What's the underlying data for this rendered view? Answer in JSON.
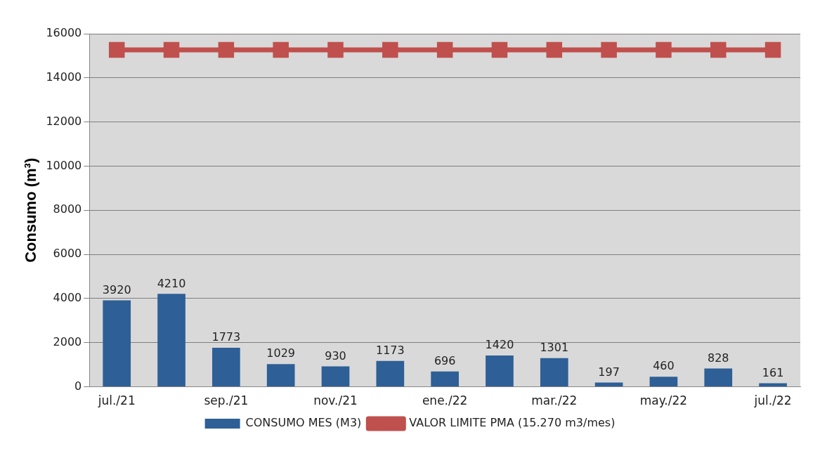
{
  "chart_data": {
    "type": "bar",
    "ylabel": "Consumo (m³)",
    "categories": [
      "jul./21",
      null,
      "sep./21",
      null,
      "nov./21",
      null,
      "ene./22",
      null,
      "mar./22",
      null,
      "may./22",
      null,
      "jul./22"
    ],
    "series": [
      {
        "name": "CONSUMO MES (M3)",
        "color": "#2e5f96",
        "values": [
          3920,
          4210,
          1773,
          1029,
          930,
          1173,
          696,
          1420,
          1301,
          197,
          460,
          828,
          161
        ],
        "value_labels": [
          "3920",
          "4210",
          "1773",
          "1029",
          "930",
          "1173",
          "696",
          "1420",
          "1301",
          "197",
          "460",
          "828",
          "161"
        ]
      },
      {
        "name": "VALOR LIMITE PMA (15.270 m3/mes)",
        "type": "line",
        "color": "#c0504d",
        "marker": "square",
        "values": [
          15270,
          15270,
          15270,
          15270,
          15270,
          15270,
          15270,
          15270,
          15270,
          15270,
          15270,
          15270,
          15270
        ]
      }
    ],
    "ylim": [
      0,
      16000
    ],
    "yticks": [
      0,
      2000,
      4000,
      6000,
      8000,
      10000,
      12000,
      14000,
      16000
    ],
    "grid": "y",
    "legend": "bottom"
  }
}
